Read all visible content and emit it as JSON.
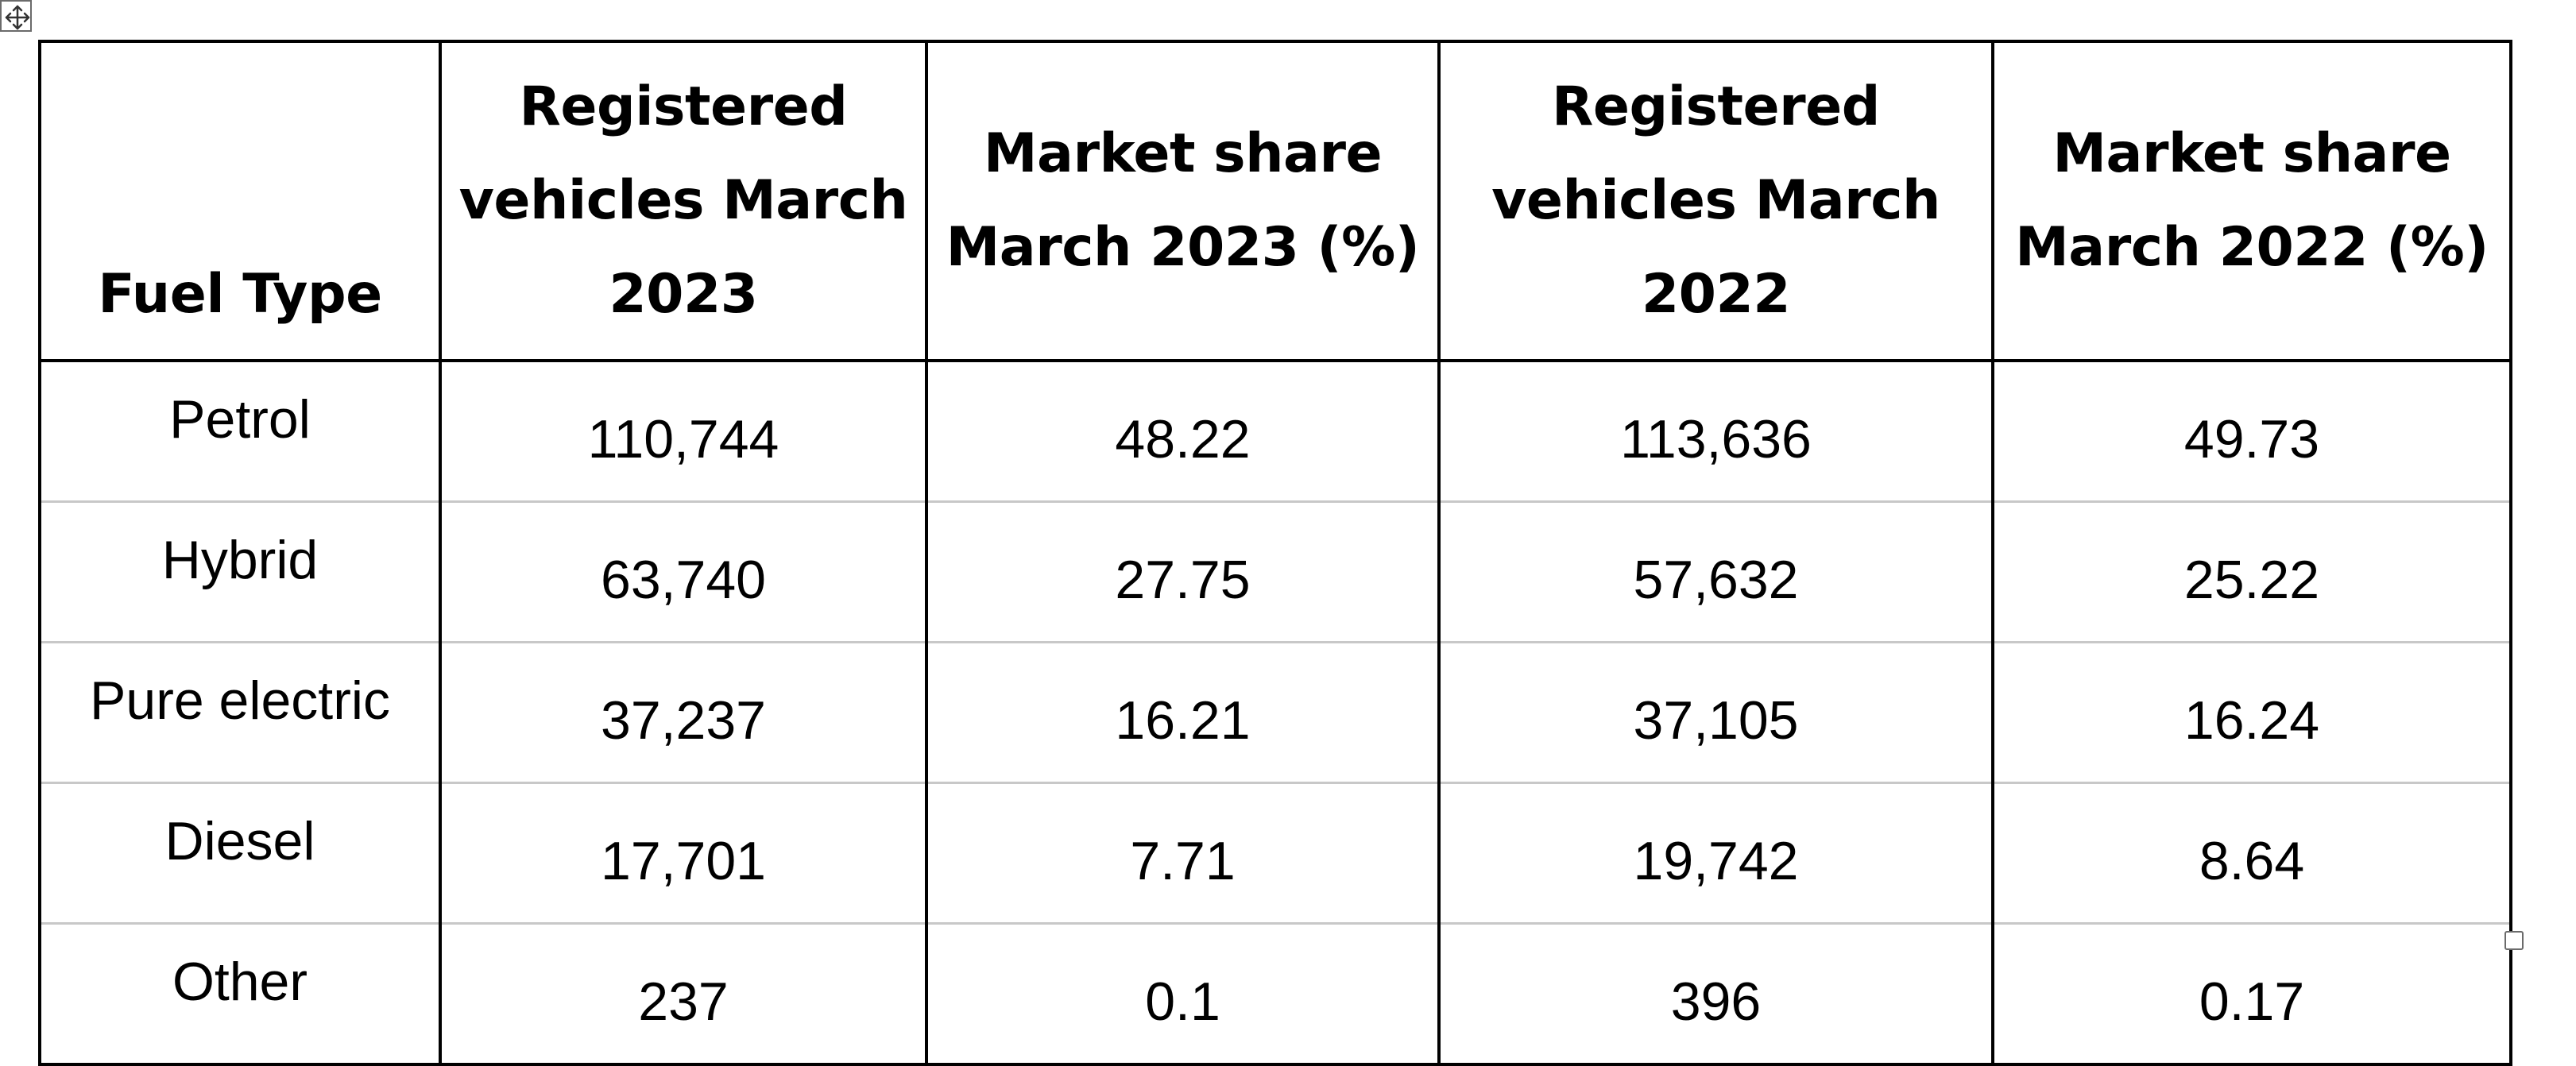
{
  "table": {
    "headers": [
      "Fuel Type",
      "Registered vehicles March 2023",
      "Market share March 2023 (%)",
      "Registered vehicles March 2022",
      "Market share March 2022 (%)"
    ],
    "header_lines": [
      [
        "Fuel Type"
      ],
      [
        "Registered",
        "vehicles March",
        "2023"
      ],
      [
        "Market share",
        "March 2023 (%)"
      ],
      [
        "Registered",
        "vehicles March",
        "2022"
      ],
      [
        "Market share",
        "March 2022 (%)"
      ]
    ],
    "rows": [
      [
        "Petrol",
        "110,744",
        "48.22",
        "113,636",
        "49.73"
      ],
      [
        "Hybrid",
        "63,740",
        "27.75",
        "57,632",
        "25.22"
      ],
      [
        "Pure electric",
        "37,237",
        "16.21",
        "37,105",
        "16.24"
      ],
      [
        "Diesel",
        "17,701",
        "7.71",
        "19,742",
        "8.64"
      ],
      [
        "Other",
        "237",
        "0.1",
        "396",
        "0.17"
      ]
    ]
  },
  "icons": {
    "move_handle": "move-arrows-icon",
    "resize_handle": "resize-square-icon"
  },
  "colors": {
    "border": "#000000",
    "row_divider": "#c8c8c8",
    "handle": "#6b6b6b"
  }
}
